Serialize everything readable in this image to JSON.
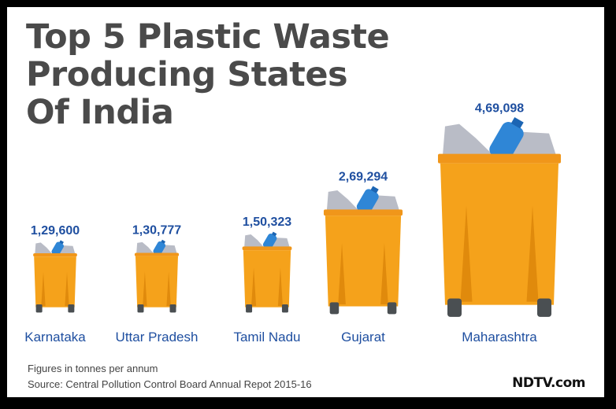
{
  "title": "Top 5 Plastic Waste\nProducing States\nOf India",
  "note": "Figures in tonnes per annum",
  "source": "Source: Central Pollution Control Board Annual Repot 2015-16",
  "brand": "NDTV.com",
  "colors": {
    "bin": "#f5a21b",
    "bin_dark": "#e08a0c",
    "lid": "#f0961a",
    "wheel": "#4a4f52",
    "bottle": "#2f86d6",
    "bag": "#b9bcc6",
    "label": "#1f4fa0"
  },
  "chart_data": {
    "type": "bar",
    "categories": [
      "Karnataka",
      "Uttar Pradesh",
      "Tamil Nadu",
      "Gujarat",
      "Maharashtra"
    ],
    "values": [
      129600,
      130777,
      150323,
      269294,
      469098
    ],
    "value_labels": [
      "1,29,600",
      "1,30,777",
      "1,50,323",
      "2,69,294",
      "4,69,098"
    ]
  }
}
